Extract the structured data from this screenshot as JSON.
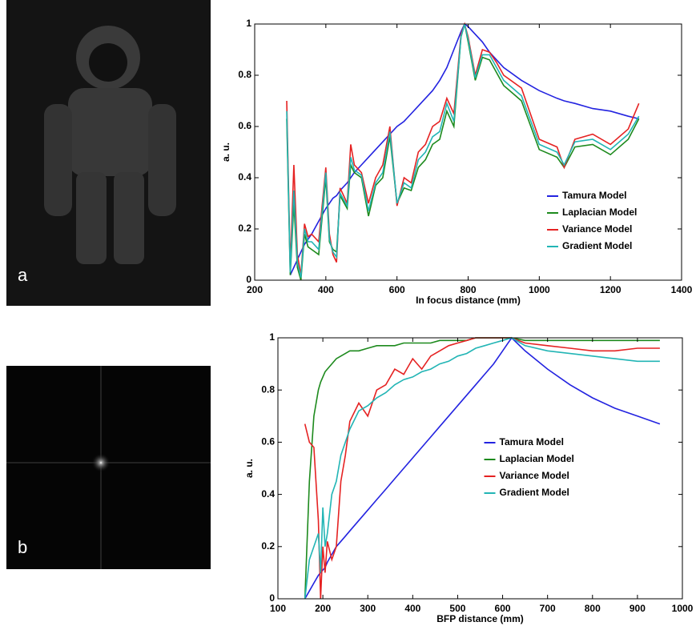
{
  "panels": [
    "a",
    "b"
  ],
  "chart_data": [
    {
      "type": "line",
      "xlabel": "In focus distance (mm)",
      "ylabel": "a. u.",
      "xlim": [
        200,
        1400
      ],
      "xticks": [
        200,
        400,
        600,
        800,
        1000,
        1200,
        1400
      ],
      "ylim": [
        0,
        1
      ],
      "yticks": [
        0,
        0.2,
        0.4,
        0.6,
        0.8,
        1
      ],
      "legend": "lower right",
      "x": [
        290,
        300,
        310,
        320,
        330,
        340,
        350,
        360,
        380,
        400,
        410,
        420,
        430,
        440,
        460,
        470,
        480,
        500,
        520,
        540,
        560,
        580,
        600,
        620,
        640,
        660,
        680,
        700,
        720,
        740,
        760,
        780,
        790,
        800,
        820,
        840,
        860,
        880,
        900,
        950,
        1000,
        1050,
        1070,
        1100,
        1150,
        1200,
        1250,
        1280
      ],
      "series": [
        {
          "name": "Tamura Model",
          "color": "#2323e0",
          "values": [
            null,
            0.02,
            0.05,
            0.08,
            0.11,
            0.14,
            0.16,
            0.18,
            0.23,
            0.28,
            0.3,
            0.32,
            0.33,
            0.35,
            0.38,
            0.4,
            0.42,
            0.45,
            0.48,
            0.51,
            0.54,
            0.57,
            0.6,
            0.62,
            0.65,
            0.68,
            0.71,
            0.74,
            0.78,
            0.83,
            0.9,
            0.97,
            1.0,
            0.99,
            0.96,
            0.93,
            0.89,
            0.86,
            0.83,
            0.78,
            0.74,
            0.71,
            0.7,
            0.69,
            0.67,
            0.66,
            0.64,
            0.63
          ]
        },
        {
          "name": "Laplacian Model",
          "color": "#1d8a1d",
          "values": [
            0.63,
            0.02,
            0.3,
            0.05,
            0.0,
            0.18,
            0.13,
            0.12,
            0.1,
            0.4,
            0.15,
            0.12,
            0.11,
            0.33,
            0.28,
            0.45,
            0.42,
            0.4,
            0.25,
            0.37,
            0.4,
            0.56,
            0.3,
            0.36,
            0.35,
            0.44,
            0.47,
            0.53,
            0.55,
            0.66,
            0.6,
            0.95,
            1.0,
            0.93,
            0.78,
            0.87,
            0.86,
            0.81,
            0.76,
            0.7,
            0.51,
            0.48,
            0.44,
            0.52,
            0.53,
            0.49,
            0.55,
            0.63
          ]
        },
        {
          "name": "Variance Model",
          "color": "#e52222",
          "values": [
            0.7,
            0.05,
            0.45,
            0.1,
            0.02,
            0.22,
            0.17,
            0.18,
            0.15,
            0.44,
            0.18,
            0.1,
            0.07,
            0.36,
            0.3,
            0.53,
            0.45,
            0.42,
            0.3,
            0.4,
            0.45,
            0.6,
            0.29,
            0.4,
            0.38,
            0.5,
            0.53,
            0.6,
            0.62,
            0.71,
            0.65,
            0.96,
            1.0,
            0.95,
            0.8,
            0.9,
            0.89,
            0.85,
            0.8,
            0.75,
            0.55,
            0.52,
            0.44,
            0.55,
            0.57,
            0.53,
            0.59,
            0.69
          ]
        },
        {
          "name": "Gradient Model",
          "color": "#22b5b5",
          "values": [
            0.66,
            0.03,
            0.35,
            0.07,
            0.01,
            0.2,
            0.15,
            0.15,
            0.12,
            0.42,
            0.16,
            0.11,
            0.09,
            0.34,
            0.29,
            0.48,
            0.43,
            0.41,
            0.27,
            0.38,
            0.42,
            0.58,
            0.3,
            0.38,
            0.36,
            0.47,
            0.5,
            0.56,
            0.58,
            0.69,
            0.62,
            0.95,
            1.0,
            0.94,
            0.79,
            0.88,
            0.88,
            0.83,
            0.78,
            0.72,
            0.53,
            0.5,
            0.45,
            0.54,
            0.55,
            0.51,
            0.57,
            0.64
          ]
        }
      ]
    },
    {
      "type": "line",
      "xlabel": "BFP distance (mm)",
      "ylabel": "a. u.",
      "xlim": [
        100,
        1000
      ],
      "xticks": [
        100,
        200,
        300,
        400,
        500,
        600,
        700,
        800,
        900,
        1000
      ],
      "ylim": [
        0,
        1
      ],
      "yticks": [
        0,
        0.2,
        0.4,
        0.6,
        0.8,
        1
      ],
      "legend": "center",
      "x": [
        160,
        170,
        180,
        190,
        195,
        200,
        205,
        210,
        220,
        230,
        240,
        250,
        260,
        280,
        300,
        320,
        340,
        360,
        380,
        400,
        420,
        440,
        460,
        480,
        500,
        520,
        540,
        560,
        580,
        600,
        620,
        650,
        700,
        750,
        800,
        850,
        900,
        950
      ],
      "series": [
        {
          "name": "Tamura Model",
          "color": "#2323e0",
          "values": [
            0,
            0.03,
            0.06,
            0.09,
            0.1,
            0.11,
            0.12,
            0.14,
            0.17,
            0.2,
            0.22,
            0.24,
            0.26,
            0.3,
            0.34,
            0.38,
            0.42,
            0.46,
            0.5,
            0.54,
            0.58,
            0.62,
            0.66,
            0.7,
            0.74,
            0.78,
            0.82,
            0.86,
            0.9,
            0.95,
            1.0,
            0.95,
            0.88,
            0.82,
            0.77,
            0.73,
            0.7,
            0.67
          ]
        },
        {
          "name": "Laplacian Model",
          "color": "#1d8a1d",
          "values": [
            0,
            0.45,
            0.7,
            0.8,
            0.83,
            0.85,
            0.87,
            0.88,
            0.9,
            0.92,
            0.93,
            0.94,
            0.95,
            0.95,
            0.96,
            0.97,
            0.97,
            0.97,
            0.98,
            0.98,
            0.98,
            0.98,
            0.99,
            0.99,
            0.99,
            0.99,
            1.0,
            1.0,
            1.0,
            1.0,
            1.0,
            0.99,
            0.99,
            0.99,
            0.99,
            0.99,
            0.99,
            0.99
          ]
        },
        {
          "name": "Variance Model",
          "color": "#e52222",
          "values": [
            0.67,
            0.6,
            0.58,
            0.3,
            0.0,
            0.2,
            0.1,
            0.22,
            0.15,
            0.2,
            0.45,
            0.55,
            0.68,
            0.75,
            0.7,
            0.8,
            0.82,
            0.88,
            0.86,
            0.92,
            0.88,
            0.93,
            0.95,
            0.97,
            0.98,
            0.99,
            1.0,
            1.0,
            1.0,
            1.0,
            1.0,
            0.98,
            0.97,
            0.96,
            0.95,
            0.95,
            0.96,
            0.96
          ]
        },
        {
          "name": "Gradient Model",
          "color": "#22b5b5",
          "values": [
            0,
            0.15,
            0.2,
            0.25,
            0.1,
            0.35,
            0.2,
            0.25,
            0.4,
            0.45,
            0.55,
            0.6,
            0.65,
            0.72,
            0.74,
            0.77,
            0.79,
            0.82,
            0.84,
            0.85,
            0.87,
            0.88,
            0.9,
            0.91,
            0.93,
            0.94,
            0.96,
            0.97,
            0.98,
            0.99,
            1.0,
            0.97,
            0.95,
            0.94,
            0.93,
            0.92,
            0.91,
            0.91
          ]
        }
      ]
    }
  ]
}
